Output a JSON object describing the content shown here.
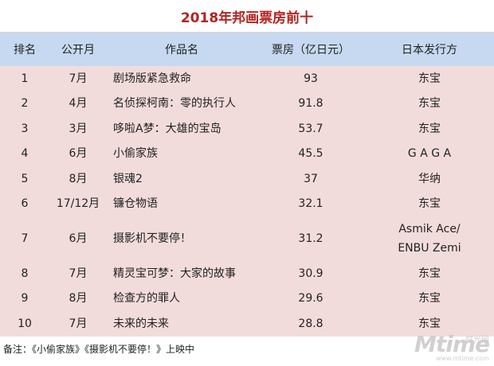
{
  "title": "2018年邦画票房前十",
  "headers": [
    "排名",
    "公开月",
    "作品名",
    "票房（亿日元）",
    "日本发行方"
  ],
  "rows": [
    {
      "rank": "1",
      "month": "7月",
      "name": "剧场版紧急救命",
      "box": "93",
      "dist": "东宝"
    },
    {
      "rank": "2",
      "month": "4月",
      "name": "名侦探柯南：零的执行人",
      "box": "91.8",
      "dist": "东宝"
    },
    {
      "rank": "3",
      "month": "3月",
      "name": "哆啦A梦：大雄的宝岛",
      "box": "53.7",
      "dist": "东宝"
    },
    {
      "rank": "4",
      "month": "6月",
      "name": "小偷家族",
      "box": "45.5",
      "dist": "G A G A"
    },
    {
      "rank": "5",
      "month": "8月",
      "name": "银魂2",
      "box": "37",
      "dist": "华纳"
    },
    {
      "rank": "6",
      "month": "17/12月",
      "name": "镰仓物语",
      "box": "32.1",
      "dist": "东宝"
    },
    {
      "rank": "7",
      "month": "6月",
      "name": "摄影机不要停！",
      "box": "31.2",
      "dist": "Asmik Ace/",
      "dist2": "ENBU Zemi"
    },
    {
      "rank": "8",
      "month": "7月",
      "name": "精灵宝可梦：大家的故事",
      "box": "30.9",
      "dist": "东宝"
    },
    {
      "rank": "9",
      "month": "8月",
      "name": "检查方的罪人",
      "box": "29.6",
      "dist": "东宝"
    },
    {
      "rank": "10",
      "month": "7月",
      "name": "未来的未来",
      "box": "28.8",
      "dist": "东宝"
    }
  ],
  "footnote": "备注：《小偷家族》《摄影机不要停！》上映中",
  "watermark": {
    "logo": "Mtime",
    "cn": "时光网",
    "url": "www.mtime.com"
  }
}
